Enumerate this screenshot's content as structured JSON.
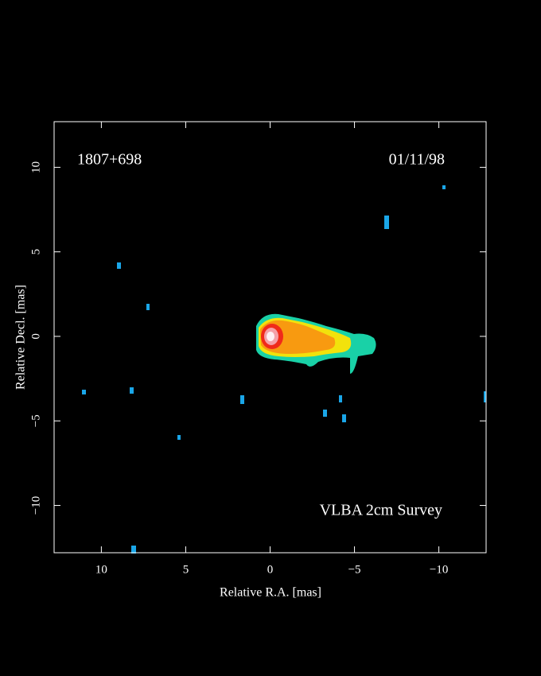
{
  "chart_data": {
    "type": "image",
    "source": "1807+698",
    "date": "01/11/98",
    "annotation": "VLBA 2cm Survey",
    "x_label": "Relative R.A. [mas]",
    "y_label": "Relative Decl. [mas]",
    "xlim": [
      12.8,
      -12.8
    ],
    "ylim": [
      -12.8,
      12.7
    ],
    "xticks": [
      10,
      5,
      0,
      {
        "value": -5,
        "label": "−5"
      },
      {
        "value": -10,
        "label": "−10"
      }
    ],
    "yticks": [
      {
        "value": -10,
        "label": "−10"
      },
      {
        "value": -5,
        "label": "−5"
      },
      0,
      5,
      10
    ]
  }
}
